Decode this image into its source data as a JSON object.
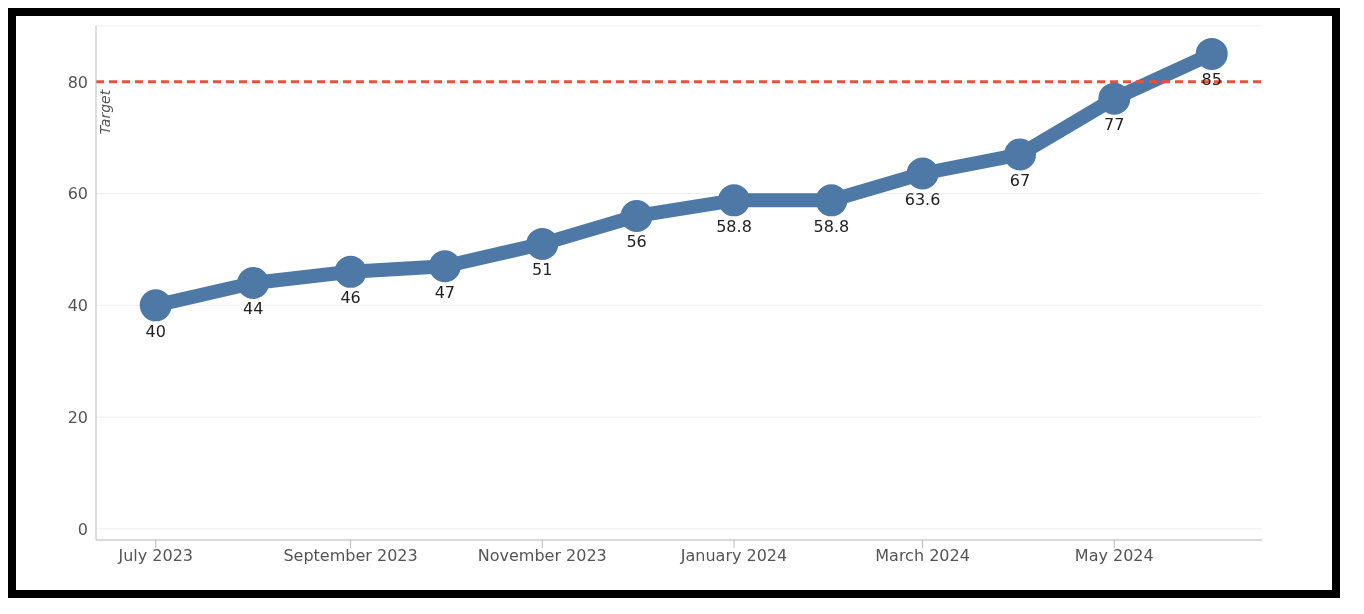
{
  "chart_data": {
    "type": "line",
    "x": [
      "2023-07",
      "2023-08",
      "2023-09",
      "2023-10",
      "2023-11",
      "2023-12",
      "2024-01",
      "2024-02",
      "2024-03",
      "2024-04",
      "2024-05",
      "2024-06"
    ],
    "series": [
      {
        "color": "#4e79a7",
        "values": [
          40,
          44,
          46,
          47,
          51,
          56,
          58.8,
          58.8,
          63.6,
          67,
          77,
          85
        ]
      }
    ],
    "xlim": [
      "2023-06-12",
      "2024-06-17"
    ],
    "xticks": [
      {
        "value": "2023-07",
        "label": "July 2023"
      },
      {
        "value": "2023-09",
        "label": "September 2023"
      },
      {
        "value": "2023-11",
        "label": "November 2023"
      },
      {
        "value": "2024-01",
        "label": "January 2024"
      },
      {
        "value": "2024-03",
        "label": "March 2024"
      },
      {
        "value": "2024-05",
        "label": "May 2024"
      }
    ],
    "ylim": [
      -2,
      90
    ],
    "yticks": [
      0,
      20,
      40,
      60,
      80
    ],
    "grid": "y",
    "marker": "circle",
    "line_style": "solid",
    "data_labels": true,
    "ref_lines": [
      {
        "axis": "y",
        "value": 80,
        "label": "Target",
        "color": "#e8513a",
        "line_style": "dashed"
      }
    ]
  }
}
